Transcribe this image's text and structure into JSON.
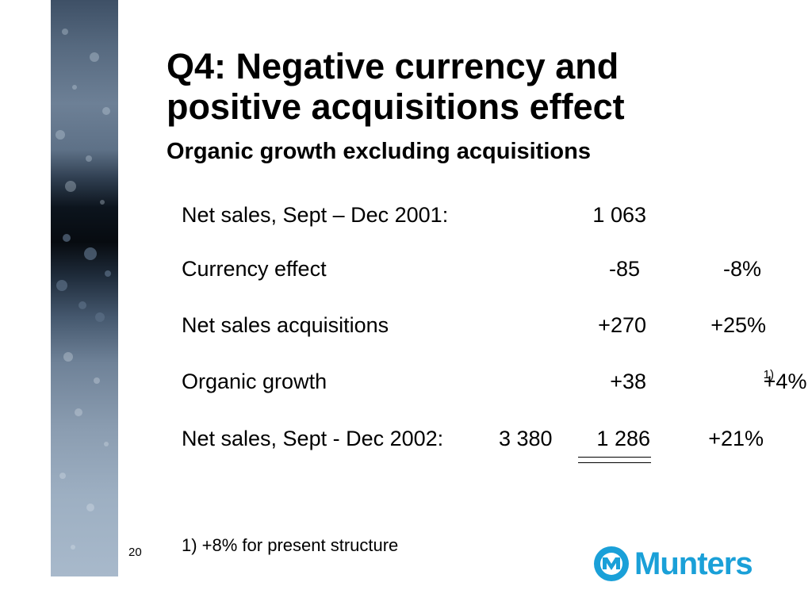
{
  "slide": {
    "title_line1": "Q4: Negative currency and",
    "title_line2": "positive acquisitions effect",
    "subtitle": "Organic growth excluding acquisitions",
    "rows": [
      {
        "label": "Net sales, Sept – Dec 2001:",
        "extra": "",
        "amount": "1 063",
        "percent": "",
        "note": ""
      },
      {
        "label": "Currency effect",
        "extra": "",
        "amount": "-85",
        "percent": "-8%",
        "note": ""
      },
      {
        "label": "Net sales acquisitions",
        "extra": "",
        "amount": "+270",
        "percent": "+25%",
        "note": ""
      },
      {
        "label": "Organic growth",
        "extra": "",
        "amount": "+38",
        "percent": "+4%",
        "note": "1)"
      },
      {
        "label": "Net sales, Sept - Dec 2002:",
        "extra": "3 380",
        "amount": "1 286",
        "percent": "+21%",
        "note": ""
      }
    ],
    "footnote": "1) +8% for present structure",
    "page_number": "20"
  },
  "logo": {
    "brand": "Munters",
    "mark_text": "MUNTERS",
    "color": "#1aa0d8"
  }
}
